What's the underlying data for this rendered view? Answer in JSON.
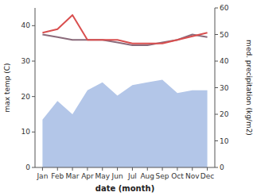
{
  "chart_data": {
    "type": "line",
    "x_label": "date (month)",
    "y_label": "max temp (C)",
    "y2_label": "med. precipitation (kg/m2)",
    "categories": [
      "Jan",
      "Feb",
      "Mar",
      "Apr",
      "May",
      "Jun",
      "Jul",
      "Aug",
      "Sep",
      "Oct",
      "Nov",
      "Dec"
    ],
    "series": [
      {
        "type": "area",
        "axis": "y2",
        "color": "#b3c6e8",
        "values": [
          18,
          25,
          20,
          29,
          32,
          27,
          31,
          32,
          33,
          28,
          29,
          29
        ]
      },
      {
        "type": "line",
        "axis": "y2",
        "color": "#8a6a7a",
        "values": [
          50,
          49,
          48,
          48,
          48,
          47,
          46,
          46,
          47,
          48,
          50,
          49
        ]
      },
      {
        "type": "line",
        "color": "#d94f4f",
        "values": [
          38,
          39,
          43,
          36,
          36,
          36,
          35,
          35,
          35,
          36,
          37,
          38
        ]
      }
    ],
    "ylim": [
      0,
      45
    ],
    "yticks": [
      0,
      10,
      20,
      30,
      40
    ],
    "y2lim": [
      0,
      60
    ],
    "y2ticks": [
      0,
      10,
      20,
      30,
      40,
      50,
      60
    ]
  }
}
